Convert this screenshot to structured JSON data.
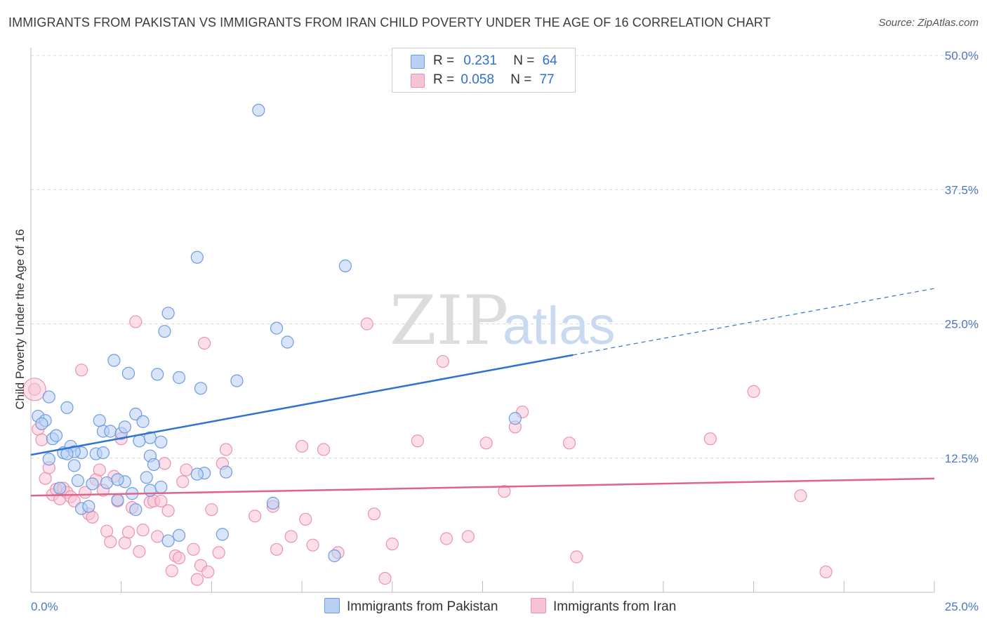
{
  "title": "IMMIGRANTS FROM PAKISTAN VS IMMIGRANTS FROM IRAN CHILD POVERTY UNDER THE AGE OF 16 CORRELATION CHART",
  "source": "Source: ZipAtlas.com",
  "watermark": {
    "zip": "ZIP",
    "atlas": "atlas"
  },
  "legend": {
    "pakistan": {
      "r_label": "R =",
      "r_value": "0.231",
      "n_label": "N =",
      "n_value": "64"
    },
    "iran": {
      "r_label": "R =",
      "r_value": "0.058",
      "n_label": "N =",
      "n_value": "77"
    }
  },
  "bottom_legend": {
    "pakistan": "Immigrants from Pakistan",
    "iran": "Immigrants from Iran"
  },
  "colors": {
    "pakistan_fill": "#b8d0f4",
    "pakistan_stroke": "#6f9be0",
    "pakistan_line": "#2f72cf",
    "iran_fill": "#f7c3d3",
    "iran_stroke": "#ea93b0",
    "iran_line": "#e0628d",
    "tick_label": "#4a78c2",
    "grid": "#d8d8d8"
  },
  "chart_data": {
    "type": "scatter",
    "title": "IMMIGRANTS FROM PAKISTAN VS IMMIGRANTS FROM IRAN CHILD POVERTY UNDER THE AGE OF 16 CORRELATION CHART",
    "xlabel": "",
    "ylabel": "Child Poverty Under the Age of 16",
    "xlim": [
      0,
      25
    ],
    "ylim": [
      0,
      50
    ],
    "x_tick_labels": [
      "0.0%",
      "25.0%"
    ],
    "y_ticks": [
      12.5,
      25.0,
      37.5,
      50.0
    ],
    "y_tick_labels": [
      "12.5%",
      "25.0%",
      "37.5%",
      "50.0%"
    ],
    "grid": true,
    "legend_position": "top-center",
    "series": [
      {
        "name": "Immigrants from Pakistan",
        "r": 0.231,
        "n": 64,
        "trend": {
          "x": [
            0,
            15
          ],
          "y": [
            12.8,
            22.1
          ],
          "dashed_extension": {
            "x": [
              15,
              25
            ],
            "y": [
              22.1,
              28.3
            ]
          }
        },
        "points": [
          [
            0.2,
            16.4
          ],
          [
            0.4,
            16.0
          ],
          [
            0.5,
            18.2
          ],
          [
            0.6,
            14.3
          ],
          [
            0.5,
            12.4
          ],
          [
            0.8,
            9.7
          ],
          [
            0.9,
            13.0
          ],
          [
            1.0,
            17.2
          ],
          [
            1.1,
            13.6
          ],
          [
            1.2,
            11.8
          ],
          [
            1.3,
            10.4
          ],
          [
            1.4,
            13.0
          ],
          [
            1.4,
            7.8
          ],
          [
            1.6,
            8.0
          ],
          [
            1.7,
            10.1
          ],
          [
            1.8,
            12.9
          ],
          [
            1.9,
            16.0
          ],
          [
            2.0,
            15.0
          ],
          [
            2.1,
            10.2
          ],
          [
            2.2,
            15.0
          ],
          [
            2.3,
            21.6
          ],
          [
            2.4,
            8.6
          ],
          [
            2.5,
            14.8
          ],
          [
            2.6,
            15.4
          ],
          [
            2.6,
            10.3
          ],
          [
            2.7,
            20.4
          ],
          [
            2.8,
            9.2
          ],
          [
            2.9,
            7.7
          ],
          [
            2.9,
            16.6
          ],
          [
            3.0,
            14.1
          ],
          [
            3.1,
            15.9
          ],
          [
            3.2,
            10.7
          ],
          [
            3.3,
            14.4
          ],
          [
            3.3,
            12.7
          ],
          [
            3.4,
            11.9
          ],
          [
            3.5,
            20.3
          ],
          [
            3.6,
            9.8
          ],
          [
            3.6,
            14.0
          ],
          [
            3.7,
            24.3
          ],
          [
            3.8,
            26.0
          ],
          [
            3.8,
            4.8
          ],
          [
            4.1,
            5.3
          ],
          [
            4.1,
            20.0
          ],
          [
            4.6,
            31.2
          ],
          [
            4.7,
            19.0
          ],
          [
            4.8,
            11.1
          ],
          [
            5.3,
            5.4
          ],
          [
            5.4,
            11.2
          ],
          [
            5.7,
            19.7
          ],
          [
            6.3,
            44.9
          ],
          [
            6.7,
            8.3
          ],
          [
            6.8,
            24.6
          ],
          [
            7.1,
            23.3
          ],
          [
            8.4,
            3.4
          ],
          [
            8.7,
            30.4
          ],
          [
            13.4,
            16.2
          ],
          [
            0.7,
            14.6
          ],
          [
            1.2,
            13.1
          ],
          [
            2.0,
            13.0
          ],
          [
            3.3,
            9.5
          ],
          [
            0.3,
            15.7
          ],
          [
            2.4,
            10.5
          ],
          [
            1.0,
            12.9
          ],
          [
            4.6,
            11.0
          ]
        ]
      },
      {
        "name": "Immigrants from Iran",
        "r": 0.058,
        "n": 77,
        "trend": {
          "x": [
            0,
            25
          ],
          "y": [
            9.0,
            10.6
          ]
        },
        "points": [
          [
            0.1,
            18.9
          ],
          [
            0.2,
            15.2
          ],
          [
            0.3,
            14.2
          ],
          [
            0.4,
            10.6
          ],
          [
            0.5,
            11.6
          ],
          [
            0.6,
            9.1
          ],
          [
            0.7,
            9.6
          ],
          [
            0.8,
            8.7
          ],
          [
            0.9,
            9.7
          ],
          [
            1.0,
            9.3
          ],
          [
            1.1,
            8.9
          ],
          [
            1.2,
            8.5
          ],
          [
            1.4,
            20.7
          ],
          [
            1.5,
            9.3
          ],
          [
            1.6,
            7.3
          ],
          [
            1.7,
            7.0
          ],
          [
            1.8,
            10.5
          ],
          [
            1.9,
            11.4
          ],
          [
            2.0,
            9.5
          ],
          [
            2.1,
            5.7
          ],
          [
            2.2,
            4.7
          ],
          [
            2.3,
            10.8
          ],
          [
            2.4,
            8.5
          ],
          [
            2.5,
            14.3
          ],
          [
            2.6,
            4.6
          ],
          [
            2.7,
            5.6
          ],
          [
            2.8,
            7.9
          ],
          [
            2.9,
            25.2
          ],
          [
            3.0,
            3.8
          ],
          [
            3.1,
            5.8
          ],
          [
            3.3,
            8.4
          ],
          [
            3.4,
            8.5
          ],
          [
            3.5,
            5.2
          ],
          [
            3.6,
            8.5
          ],
          [
            3.7,
            12.0
          ],
          [
            3.8,
            7.6
          ],
          [
            3.9,
            2.0
          ],
          [
            4.0,
            3.4
          ],
          [
            4.1,
            3.2
          ],
          [
            4.2,
            10.3
          ],
          [
            4.3,
            11.4
          ],
          [
            4.5,
            4.0
          ],
          [
            4.6,
            1.2
          ],
          [
            4.7,
            2.5
          ],
          [
            4.8,
            23.2
          ],
          [
            5.0,
            7.7
          ],
          [
            5.2,
            3.7
          ],
          [
            5.3,
            12.0
          ],
          [
            5.4,
            13.3
          ],
          [
            6.2,
            7.1
          ],
          [
            6.7,
            8.0
          ],
          [
            6.8,
            4.0
          ],
          [
            7.2,
            5.2
          ],
          [
            7.5,
            13.6
          ],
          [
            7.6,
            6.8
          ],
          [
            7.8,
            4.4
          ],
          [
            8.1,
            13.3
          ],
          [
            8.5,
            3.7
          ],
          [
            9.3,
            25.0
          ],
          [
            9.5,
            7.3
          ],
          [
            9.8,
            1.3
          ],
          [
            10.0,
            4.5
          ],
          [
            10.7,
            14.1
          ],
          [
            11.4,
            21.5
          ],
          [
            11.5,
            5.0
          ],
          [
            12.1,
            5.2
          ],
          [
            12.6,
            13.9
          ],
          [
            13.1,
            9.4
          ],
          [
            13.4,
            15.4
          ],
          [
            13.6,
            16.8
          ],
          [
            14.9,
            13.9
          ],
          [
            15.1,
            3.3
          ],
          [
            18.8,
            14.3
          ],
          [
            20.0,
            18.7
          ],
          [
            21.3,
            9.0
          ],
          [
            22.0,
            1.9
          ],
          [
            4.9,
            1.9
          ]
        ]
      }
    ]
  }
}
